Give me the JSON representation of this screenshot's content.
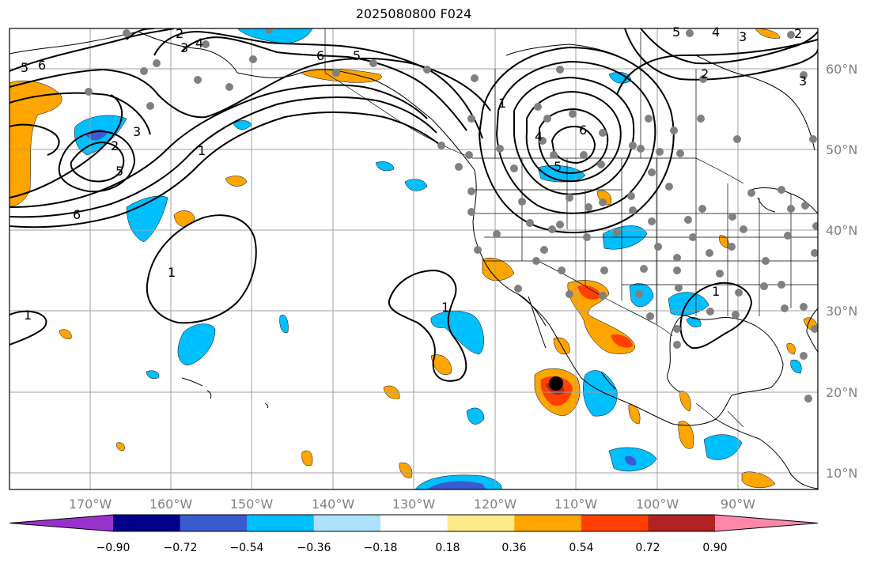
{
  "map": {
    "title": "2025080800 F024",
    "longitude_labels": [
      "170°W",
      "160°W",
      "150°W",
      "140°W",
      "130°W",
      "120°W",
      "110°W",
      "100°W",
      "90°W"
    ],
    "latitude_labels": [
      "60°N",
      "50°N",
      "40°N",
      "30°N",
      "20°N",
      "10°N"
    ],
    "contour_labels": [
      "2",
      "3",
      "4",
      "5",
      "6",
      "5",
      "6",
      "5",
      "4",
      "3",
      "2",
      "1",
      "6",
      "5",
      "4",
      "3",
      "2",
      "1",
      "5",
      "6",
      "1",
      "1",
      "1",
      "1",
      "2",
      "3"
    ],
    "colors": {
      "grid": "#a0a0a0",
      "contour": "#000000",
      "coast": "#000000",
      "station_dot": "#808080",
      "storm_marker": "#000000"
    }
  },
  "colorbar": {
    "tick_labels": [
      "−0.90",
      "−0.72",
      "−0.54",
      "−0.36",
      "−0.18",
      "0.18",
      "0.36",
      "0.54",
      "0.72",
      "0.90"
    ],
    "bins": [
      {
        "color": "#9932cc"
      },
      {
        "color": "#00008b"
      },
      {
        "color": "#3a5bd0"
      },
      {
        "color": "#00bfff"
      },
      {
        "color": "#b0e0ff"
      },
      {
        "color": "#ffffff"
      },
      {
        "color": "#ffeb8a"
      },
      {
        "color": "#ffa500"
      },
      {
        "color": "#ff4000"
      },
      {
        "color": "#b22222"
      },
      {
        "color": "#ff88aa"
      }
    ]
  }
}
